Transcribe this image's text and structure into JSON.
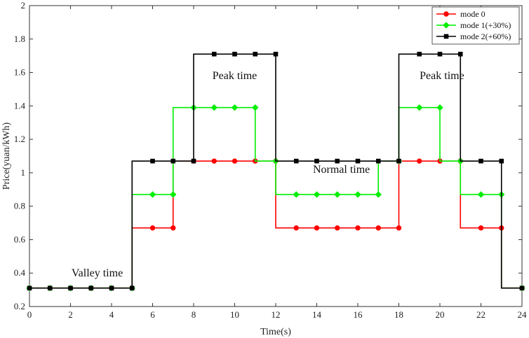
{
  "chart_data": {
    "type": "line",
    "xlabel": "Time(s)",
    "ylabel": "Price(yuan/kWh)",
    "xlim": [
      0,
      24
    ],
    "ylim": [
      0.2,
      2
    ],
    "xticks": [
      0,
      2,
      4,
      6,
      8,
      10,
      12,
      14,
      16,
      18,
      20,
      22,
      24
    ],
    "yticks": [
      0.2,
      0.4,
      0.6,
      0.8,
      1,
      1.2,
      1.4,
      1.6,
      1.8,
      2
    ],
    "ytick_labels": [
      "0.2",
      "0.4",
      "0.6",
      "0.8",
      "1",
      "1.2",
      "1.4",
      "1.6",
      "1.8",
      "2"
    ],
    "grid": false,
    "legend_position": "top-right",
    "step_style": "pre",
    "x": [
      0,
      1,
      2,
      3,
      4,
      5,
      6,
      7,
      8,
      9,
      10,
      11,
      12,
      13,
      14,
      15,
      16,
      17,
      18,
      19,
      20,
      21,
      22,
      23,
      24
    ],
    "series": [
      {
        "name": "mode 0",
        "color": "#ff0000",
        "marker": "circle",
        "values": [
          0.31,
          0.31,
          0.31,
          0.31,
          0.31,
          0.31,
          0.67,
          0.67,
          1.07,
          1.07,
          1.07,
          1.07,
          1.07,
          0.67,
          0.67,
          0.67,
          0.67,
          0.67,
          0.67,
          1.07,
          1.07,
          1.07,
          0.67,
          0.67,
          0.31
        ]
      },
      {
        "name": "mode 1(+30%)",
        "color": "#00ee00",
        "marker": "diamond",
        "values": [
          0.31,
          0.31,
          0.31,
          0.31,
          0.31,
          0.31,
          0.87,
          0.87,
          1.39,
          1.39,
          1.39,
          1.39,
          1.07,
          0.87,
          0.87,
          0.87,
          0.87,
          0.87,
          1.07,
          1.39,
          1.39,
          1.07,
          0.87,
          0.87,
          0.31
        ]
      },
      {
        "name": "mode 2(+60%)",
        "color": "#000000",
        "marker": "square",
        "values": [
          0.31,
          0.31,
          0.31,
          0.31,
          0.31,
          0.31,
          1.07,
          1.07,
          1.07,
          1.71,
          1.71,
          1.71,
          1.71,
          1.07,
          1.07,
          1.07,
          1.07,
          1.07,
          1.07,
          1.71,
          1.71,
          1.71,
          1.07,
          1.07,
          0.31
        ]
      }
    ],
    "annotations": [
      {
        "text": "Valley time",
        "x": 3.3,
        "y": 0.38
      },
      {
        "text": "Peak time",
        "x": 10.0,
        "y": 1.56
      },
      {
        "text": "Normal time",
        "x": 15.2,
        "y": 1.0
      },
      {
        "text": "Peak time",
        "x": 20.1,
        "y": 1.56
      }
    ]
  }
}
